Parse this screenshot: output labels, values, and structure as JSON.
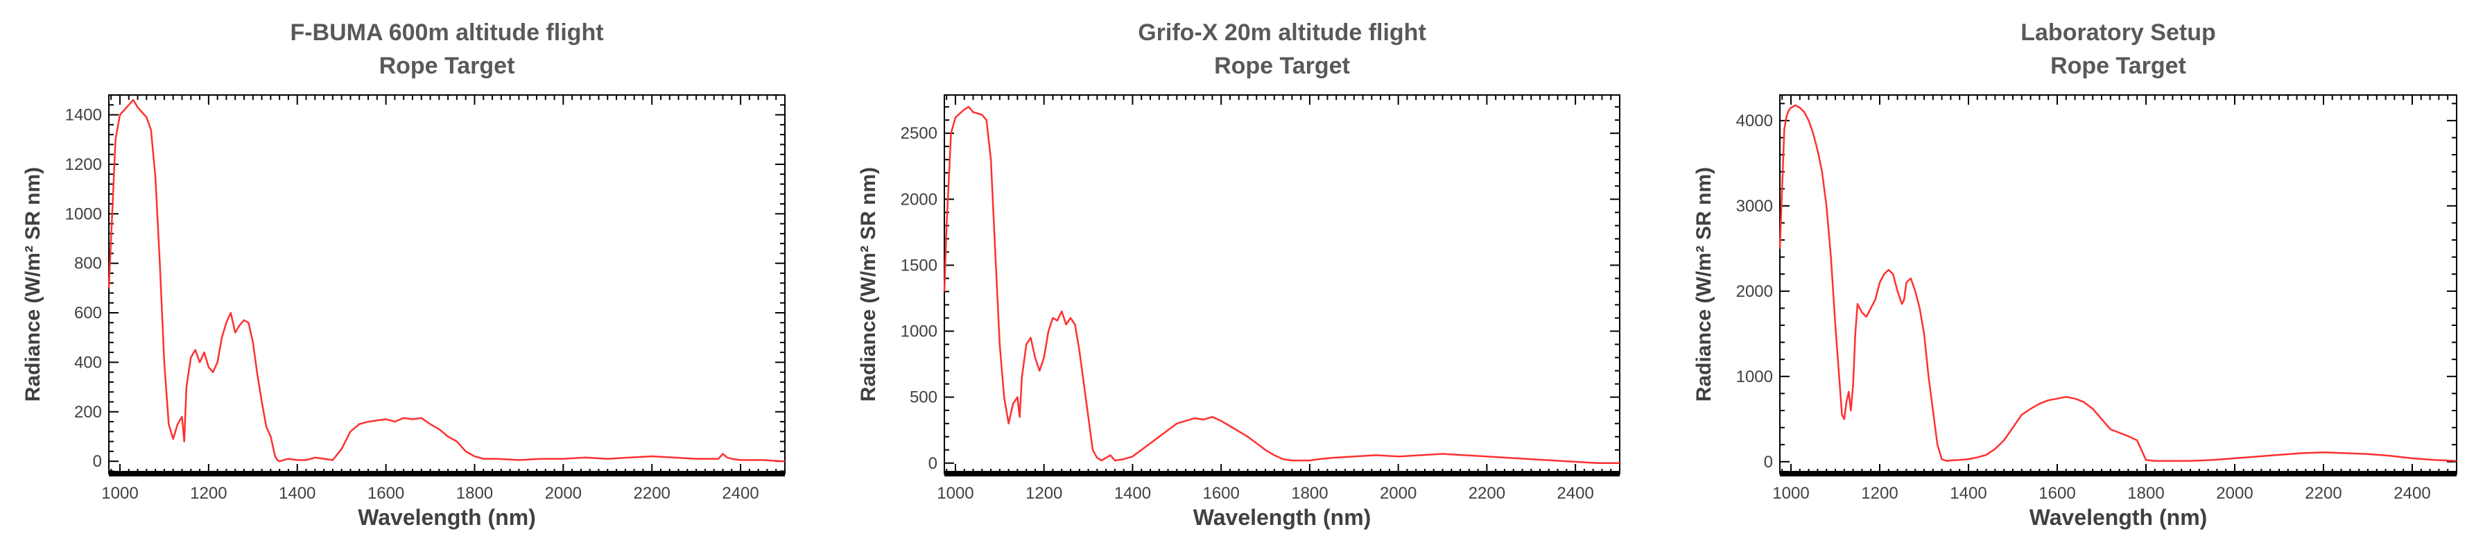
{
  "chart_data": [
    {
      "type": "line",
      "title": "F-BUMA 600m altitude flight",
      "subtitle": "Rope Target",
      "xlabel": "Wavelength (nm)",
      "ylabel": "Radiance (W/m² SR nm)",
      "xlim": [
        975,
        2500
      ],
      "ylim": [
        -50,
        1480
      ],
      "xticks": [
        "1000",
        "1200",
        "1400",
        "1600",
        "1800",
        "2000",
        "2200",
        "2400"
      ],
      "yticks": [
        "0",
        "200",
        "400",
        "600",
        "800",
        "1000",
        "1200",
        "1400"
      ],
      "grid": false,
      "color": "#ff3030",
      "series": [
        {
          "x": [
            975,
            980,
            990,
            1000,
            1010,
            1020,
            1030,
            1040,
            1050,
            1060,
            1070,
            1080,
            1090,
            1100,
            1110,
            1120,
            1130,
            1140,
            1145,
            1150,
            1160,
            1170,
            1180,
            1190,
            1200,
            1210,
            1220,
            1230,
            1240,
            1250,
            1260,
            1270,
            1280,
            1290,
            1300,
            1310,
            1320,
            1330,
            1340,
            1350,
            1355,
            1360,
            1380,
            1400,
            1420,
            1440,
            1460,
            1480,
            1500,
            1520,
            1540,
            1560,
            1580,
            1600,
            1620,
            1640,
            1660,
            1680,
            1700,
            1720,
            1740,
            1760,
            1780,
            1800,
            1820,
            1850,
            1900,
            1950,
            2000,
            2050,
            2100,
            2150,
            2200,
            2250,
            2300,
            2350,
            2360,
            2370,
            2380,
            2400,
            2450,
            2500
          ],
          "y": [
            700,
            900,
            1300,
            1400,
            1420,
            1440,
            1460,
            1430,
            1410,
            1390,
            1340,
            1150,
            800,
            400,
            150,
            90,
            150,
            180,
            80,
            300,
            420,
            450,
            400,
            440,
            380,
            360,
            400,
            500,
            560,
            600,
            520,
            550,
            570,
            560,
            480,
            350,
            240,
            140,
            100,
            20,
            5,
            0,
            10,
            5,
            5,
            15,
            10,
            5,
            50,
            120,
            150,
            160,
            165,
            170,
            160,
            175,
            170,
            175,
            150,
            130,
            100,
            80,
            40,
            20,
            10,
            10,
            5,
            10,
            10,
            15,
            10,
            15,
            20,
            15,
            10,
            10,
            30,
            15,
            10,
            5,
            5,
            0
          ]
        }
      ]
    },
    {
      "type": "line",
      "title": "Grifo-X 20m altitude flight",
      "subtitle": "Rope Target",
      "xlabel": "Wavelength (nm)",
      "ylabel": "Radiance (W/m² SR nm)",
      "xlim": [
        975,
        2500
      ],
      "ylim": [
        -80,
        2790
      ],
      "xticks": [
        "1000",
        "1200",
        "1400",
        "1600",
        "1800",
        "2000",
        "2200",
        "2400"
      ],
      "yticks": [
        "0",
        "500",
        "1000",
        "1500",
        "2000",
        "2500"
      ],
      "grid": false,
      "color": "#ff3030",
      "series": [
        {
          "x": [
            975,
            980,
            990,
            1000,
            1010,
            1020,
            1030,
            1040,
            1050,
            1060,
            1070,
            1080,
            1090,
            1100,
            1110,
            1120,
            1130,
            1140,
            1145,
            1150,
            1160,
            1170,
            1180,
            1190,
            1200,
            1210,
            1220,
            1230,
            1240,
            1250,
            1260,
            1270,
            1280,
            1290,
            1300,
            1310,
            1320,
            1330,
            1340,
            1350,
            1360,
            1380,
            1400,
            1420,
            1440,
            1460,
            1480,
            1500,
            1520,
            1540,
            1560,
            1580,
            1600,
            1620,
            1640,
            1660,
            1680,
            1700,
            1720,
            1740,
            1760,
            1780,
            1800,
            1820,
            1850,
            1900,
            1950,
            2000,
            2050,
            2100,
            2150,
            2200,
            2250,
            2300,
            2350,
            2400,
            2450,
            2500
          ],
          "y": [
            1300,
            1800,
            2500,
            2620,
            2650,
            2680,
            2700,
            2660,
            2650,
            2640,
            2600,
            2300,
            1600,
            900,
            500,
            300,
            450,
            500,
            350,
            650,
            900,
            950,
            800,
            700,
            800,
            1000,
            1100,
            1080,
            1150,
            1050,
            1100,
            1050,
            850,
            600,
            350,
            100,
            40,
            20,
            40,
            60,
            20,
            30,
            50,
            100,
            150,
            200,
            250,
            300,
            320,
            340,
            330,
            350,
            320,
            280,
            240,
            200,
            150,
            100,
            60,
            30,
            20,
            20,
            20,
            30,
            40,
            50,
            60,
            50,
            60,
            70,
            60,
            50,
            40,
            30,
            20,
            10,
            0,
            0
          ]
        }
      ]
    },
    {
      "type": "line",
      "title": "Laboratory Setup",
      "subtitle": "Rope Target",
      "xlabel": "Wavelength (nm)",
      "ylabel": "Radiance (W/m² SR nm)",
      "xlim": [
        975,
        2500
      ],
      "ylim": [
        -140,
        4300
      ],
      "xticks": [
        "1000",
        "1200",
        "1400",
        "1600",
        "1800",
        "2000",
        "2200",
        "2400"
      ],
      "yticks": [
        "0",
        "1000",
        "2000",
        "3000",
        "4000"
      ],
      "grid": false,
      "color": "#ff3030",
      "series": [
        {
          "x": [
            975,
            980,
            985,
            990,
            995,
            1000,
            1010,
            1020,
            1030,
            1040,
            1050,
            1060,
            1070,
            1080,
            1090,
            1100,
            1110,
            1115,
            1120,
            1125,
            1130,
            1135,
            1140,
            1145,
            1150,
            1160,
            1170,
            1180,
            1190,
            1200,
            1210,
            1220,
            1230,
            1240,
            1250,
            1255,
            1260,
            1270,
            1280,
            1290,
            1300,
            1310,
            1320,
            1330,
            1340,
            1350,
            1360,
            1380,
            1400,
            1420,
            1440,
            1460,
            1480,
            1500,
            1520,
            1540,
            1560,
            1580,
            1600,
            1620,
            1640,
            1660,
            1680,
            1700,
            1720,
            1740,
            1760,
            1780,
            1800,
            1820,
            1850,
            1900,
            1950,
            2000,
            2050,
            2100,
            2150,
            2200,
            2250,
            2300,
            2350,
            2400,
            2450,
            2500
          ],
          "y": [
            2500,
            3200,
            3900,
            4050,
            4120,
            4150,
            4180,
            4150,
            4100,
            4000,
            3850,
            3650,
            3400,
            3000,
            2400,
            1600,
            900,
            550,
            500,
            700,
            820,
            600,
            900,
            1500,
            1850,
            1750,
            1700,
            1800,
            1900,
            2100,
            2200,
            2250,
            2200,
            2000,
            1850,
            1900,
            2100,
            2150,
            2000,
            1800,
            1500,
            1000,
            600,
            200,
            30,
            10,
            15,
            20,
            30,
            50,
            80,
            150,
            250,
            400,
            550,
            620,
            680,
            720,
            740,
            760,
            740,
            700,
            620,
            500,
            380,
            340,
            300,
            250,
            20,
            10,
            10,
            10,
            20,
            40,
            60,
            80,
            100,
            110,
            100,
            90,
            70,
            40,
            20,
            10
          ]
        }
      ]
    }
  ]
}
